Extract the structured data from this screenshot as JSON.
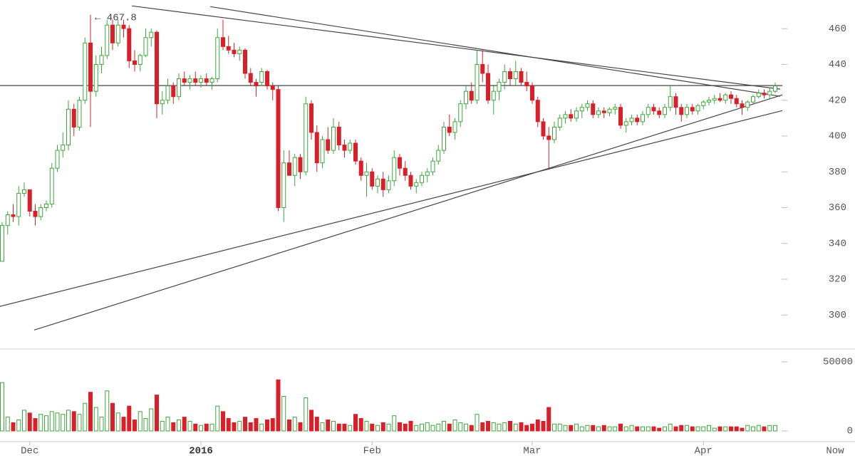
{
  "chart_data": {
    "type": "candlestick",
    "annotation": "← 467.8",
    "annotation_index": 16,
    "x_end_label": "Now",
    "categories": [
      null,
      null,
      null,
      null,
      null,
      "Dec",
      null,
      null,
      null,
      null,
      null,
      null,
      null,
      null,
      null,
      null,
      null,
      null,
      null,
      null,
      null,
      null,
      null,
      null,
      null,
      null,
      null,
      null,
      null,
      null,
      null,
      null,
      null,
      null,
      null,
      null,
      "2016",
      null,
      null,
      null,
      null,
      null,
      null,
      null,
      null,
      null,
      null,
      null,
      null,
      null,
      null,
      null,
      null,
      null,
      null,
      null,
      null,
      null,
      null,
      null,
      null,
      null,
      null,
      null,
      null,
      null,
      null,
      "Feb",
      null,
      null,
      null,
      null,
      null,
      null,
      null,
      null,
      null,
      null,
      null,
      null,
      null,
      null,
      null,
      null,
      null,
      null,
      null,
      null,
      null,
      null,
      null,
      null,
      null,
      null,
      null,
      null,
      "Mar",
      null,
      null,
      null,
      null,
      null,
      null,
      null,
      null,
      null,
      null,
      null,
      null,
      null,
      null,
      null,
      null,
      null,
      null,
      null,
      null,
      null,
      null,
      null,
      null,
      null,
      null,
      null,
      null,
      null,
      null,
      "Apr",
      null,
      null,
      null,
      null,
      null,
      null,
      null,
      null,
      null,
      null,
      null,
      null,
      null
    ],
    "ohlc": [
      [
        330,
        352,
        330,
        350
      ],
      [
        350,
        358,
        345,
        356
      ],
      [
        356,
        362,
        352,
        355
      ],
      [
        355,
        372,
        350,
        368
      ],
      [
        368,
        374,
        366,
        370
      ],
      [
        370,
        370,
        355,
        358
      ],
      [
        358,
        362,
        350,
        355
      ],
      [
        355,
        362,
        353,
        360
      ],
      [
        360,
        364,
        358,
        362
      ],
      [
        362,
        385,
        360,
        382
      ],
      [
        382,
        395,
        380,
        392
      ],
      [
        392,
        402,
        388,
        395
      ],
      [
        395,
        420,
        392,
        415
      ],
      [
        415,
        418,
        400,
        405
      ],
      [
        405,
        422,
        403,
        420
      ],
      [
        420,
        455,
        418,
        452
      ],
      [
        452,
        467.8,
        405,
        425
      ],
      [
        425,
        445,
        422,
        440
      ],
      [
        440,
        450,
        435,
        445
      ],
      [
        445,
        465,
        443,
        462
      ],
      [
        462,
        465,
        448,
        452
      ],
      [
        452,
        465,
        450,
        462
      ],
      [
        462,
        465,
        455,
        460
      ],
      [
        460,
        462,
        438,
        442
      ],
      [
        442,
        448,
        436,
        440
      ],
      [
        440,
        446,
        436,
        445
      ],
      [
        445,
        460,
        444,
        455
      ],
      [
        455,
        460,
        450,
        458
      ],
      [
        458,
        459,
        410,
        418
      ],
      [
        418,
        425,
        412,
        420
      ],
      [
        420,
        432,
        418,
        428
      ],
      [
        428,
        430,
        418,
        422
      ],
      [
        422,
        435,
        420,
        432
      ],
      [
        432,
        436,
        428,
        430
      ],
      [
        430,
        434,
        426,
        432
      ],
      [
        432,
        436,
        428,
        430
      ],
      [
        430,
        434,
        427,
        432
      ],
      [
        432,
        435,
        428,
        430
      ],
      [
        430,
        433,
        426,
        432
      ],
      [
        432,
        460,
        430,
        455
      ],
      [
        455,
        465,
        448,
        450
      ],
      [
        450,
        456,
        446,
        448
      ],
      [
        448,
        452,
        444,
        446
      ],
      [
        446,
        450,
        442,
        448
      ],
      [
        448,
        449,
        432,
        435
      ],
      [
        435,
        438,
        428,
        430
      ],
      [
        430,
        432,
        422,
        428
      ],
      [
        430,
        438,
        428,
        436
      ],
      [
        436,
        437,
        426,
        428
      ],
      [
        428,
        430,
        420,
        426
      ],
      [
        426,
        428,
        358,
        360
      ],
      [
        360,
        392,
        352,
        385
      ],
      [
        385,
        392,
        378,
        378
      ],
      [
        378,
        390,
        372,
        388
      ],
      [
        388,
        390,
        376,
        380
      ],
      [
        380,
        422,
        378,
        418
      ],
      [
        418,
        420,
        398,
        402
      ],
      [
        402,
        406,
        380,
        385
      ],
      [
        385,
        400,
        382,
        398
      ],
      [
        398,
        405,
        390,
        392
      ],
      [
        392,
        410,
        390,
        405
      ],
      [
        405,
        408,
        392,
        395
      ],
      [
        395,
        398,
        388,
        392
      ],
      [
        392,
        398,
        390,
        396
      ],
      [
        396,
        398,
        384,
        386
      ],
      [
        386,
        388,
        375,
        378
      ],
      [
        378,
        385,
        366,
        380
      ],
      [
        380,
        382,
        370,
        372
      ],
      [
        372,
        378,
        368,
        376
      ],
      [
        376,
        380,
        366,
        370
      ],
      [
        370,
        378,
        368,
        375
      ],
      [
        375,
        392,
        372,
        388
      ],
      [
        388,
        390,
        378,
        382
      ],
      [
        382,
        386,
        375,
        378
      ],
      [
        378,
        380,
        370,
        372
      ],
      [
        372,
        376,
        368,
        374
      ],
      [
        374,
        380,
        372,
        378
      ],
      [
        378,
        382,
        374,
        380
      ],
      [
        380,
        388,
        378,
        386
      ],
      [
        386,
        395,
        384,
        392
      ],
      [
        392,
        408,
        390,
        405
      ],
      [
        405,
        412,
        400,
        402
      ],
      [
        402,
        410,
        398,
        408
      ],
      [
        408,
        420,
        405,
        418
      ],
      [
        418,
        428,
        415,
        425
      ],
      [
        425,
        430,
        418,
        420
      ],
      [
        420,
        448,
        418,
        440
      ],
      [
        440,
        448,
        430,
        435
      ],
      [
        435,
        440,
        418,
        420
      ],
      [
        420,
        428,
        412,
        425
      ],
      [
        425,
        432,
        420,
        430
      ],
      [
        430,
        440,
        426,
        436
      ],
      [
        436,
        438,
        428,
        432
      ],
      [
        432,
        442,
        428,
        436
      ],
      [
        436,
        438,
        428,
        430
      ],
      [
        430,
        436,
        425,
        428
      ],
      [
        428,
        430,
        418,
        420
      ],
      [
        420,
        422,
        405,
        408
      ],
      [
        408,
        410,
        398,
        400
      ],
      [
        400,
        405,
        382,
        398
      ],
      [
        398,
        408,
        396,
        405
      ],
      [
        405,
        412,
        403,
        410
      ],
      [
        410,
        414,
        407,
        412
      ],
      [
        412,
        415,
        408,
        410
      ],
      [
        410,
        416,
        408,
        414
      ],
      [
        414,
        418,
        410,
        416
      ],
      [
        416,
        420,
        414,
        418
      ],
      [
        418,
        420,
        410,
        412
      ],
      [
        412,
        416,
        410,
        414
      ],
      [
        414,
        416,
        410,
        413
      ],
      [
        413,
        416,
        411,
        415
      ],
      [
        415,
        418,
        412,
        416
      ],
      [
        416,
        418,
        404,
        406
      ],
      [
        406,
        410,
        402,
        408
      ],
      [
        408,
        412,
        406,
        410
      ],
      [
        410,
        412,
        406,
        408
      ],
      [
        408,
        414,
        406,
        412
      ],
      [
        412,
        418,
        410,
        416
      ],
      [
        416,
        418,
        412,
        414
      ],
      [
        414,
        416,
        410,
        412
      ],
      [
        412,
        418,
        410,
        416
      ],
      [
        416,
        428,
        414,
        422
      ],
      [
        422,
        424,
        412,
        416
      ],
      [
        416,
        418,
        408,
        412
      ],
      [
        412,
        418,
        410,
        416
      ],
      [
        416,
        418,
        412,
        414
      ],
      [
        414,
        418,
        412,
        417
      ],
      [
        417,
        420,
        415,
        419
      ],
      [
        419,
        422,
        417,
        420
      ],
      [
        420,
        423,
        418,
        421
      ],
      [
        421,
        424,
        419,
        420
      ],
      [
        420,
        424,
        418,
        423
      ],
      [
        423,
        425,
        418,
        421
      ],
      [
        421,
        423,
        416,
        418
      ],
      [
        418,
        420,
        412,
        416
      ],
      [
        416,
        420,
        414,
        419
      ],
      [
        419,
        423,
        418,
        422
      ],
      [
        422,
        426,
        421,
        424
      ],
      [
        424,
        426,
        421,
        423
      ],
      [
        423,
        427,
        421,
        425
      ],
      [
        425,
        430,
        424,
        428
      ]
    ],
    "volume": [
      35000,
      10000,
      6000,
      8000,
      15000,
      13000,
      9000,
      12000,
      11000,
      14000,
      13000,
      12000,
      15000,
      14000,
      12000,
      20000,
      28000,
      17000,
      10000,
      29000,
      20000,
      13000,
      10000,
      18000,
      8000,
      14000,
      9000,
      16000,
      26000,
      7000,
      10000,
      6000,
      8000,
      10000,
      7000,
      5000,
      4000,
      5000,
      5000,
      18000,
      14000,
      9000,
      6000,
      7000,
      10000,
      6000,
      9000,
      5000,
      8000,
      9000,
      37000,
      25000,
      8000,
      10000,
      6000,
      24000,
      15000,
      10000,
      6000,
      8000,
      7000,
      5000,
      5000,
      4000,
      12000,
      9000,
      7000,
      5000,
      4000,
      6000,
      5000,
      11000,
      6000,
      5000,
      7000,
      4000,
      5000,
      6000,
      4000,
      5000,
      7000,
      5000,
      8000,
      6000,
      5000,
      4000,
      12000,
      6000,
      7000,
      6000,
      5000,
      6000,
      7000,
      5000,
      6000,
      4000,
      5000,
      8000,
      7000,
      17000,
      5000,
      5000,
      4000,
      4000,
      5000,
      3000,
      4000,
      4000,
      3000,
      4000,
      3000,
      3000,
      5000,
      3000,
      4000,
      3000,
      3000,
      3000,
      3000,
      2000,
      3000,
      5000,
      3000,
      4000,
      4000,
      3000,
      3000,
      3000,
      4000,
      2000,
      3000,
      3000,
      3000,
      3000,
      2000,
      4000,
      3000,
      4000,
      3000,
      4000,
      4000
    ],
    "up_color": "#3aa83a",
    "down_color": "#d9202a",
    "ylim": [
      281,
      476
    ],
    "yticks": [
      300,
      320,
      340,
      360,
      380,
      400,
      420,
      440,
      460
    ],
    "volume_ylim": [
      0,
      59300
    ],
    "volume_yticks": [
      0,
      50000
    ],
    "trend_lines": [
      {
        "x1": 23.5,
        "y1": 472.7,
        "x2": 140.9,
        "y2": 426.2
      },
      {
        "x1": 37.7,
        "y1": 472.3,
        "x2": 140.9,
        "y2": 422.2
      },
      {
        "x1": -0.4,
        "y1": 428.2,
        "x2": 141.3,
        "y2": 428.2
      },
      {
        "x1": -0.4,
        "y1": 304.8,
        "x2": 141.3,
        "y2": 414.2
      },
      {
        "x1": 5.8,
        "y1": 291.6,
        "x2": 141.3,
        "y2": 423.0
      }
    ]
  }
}
